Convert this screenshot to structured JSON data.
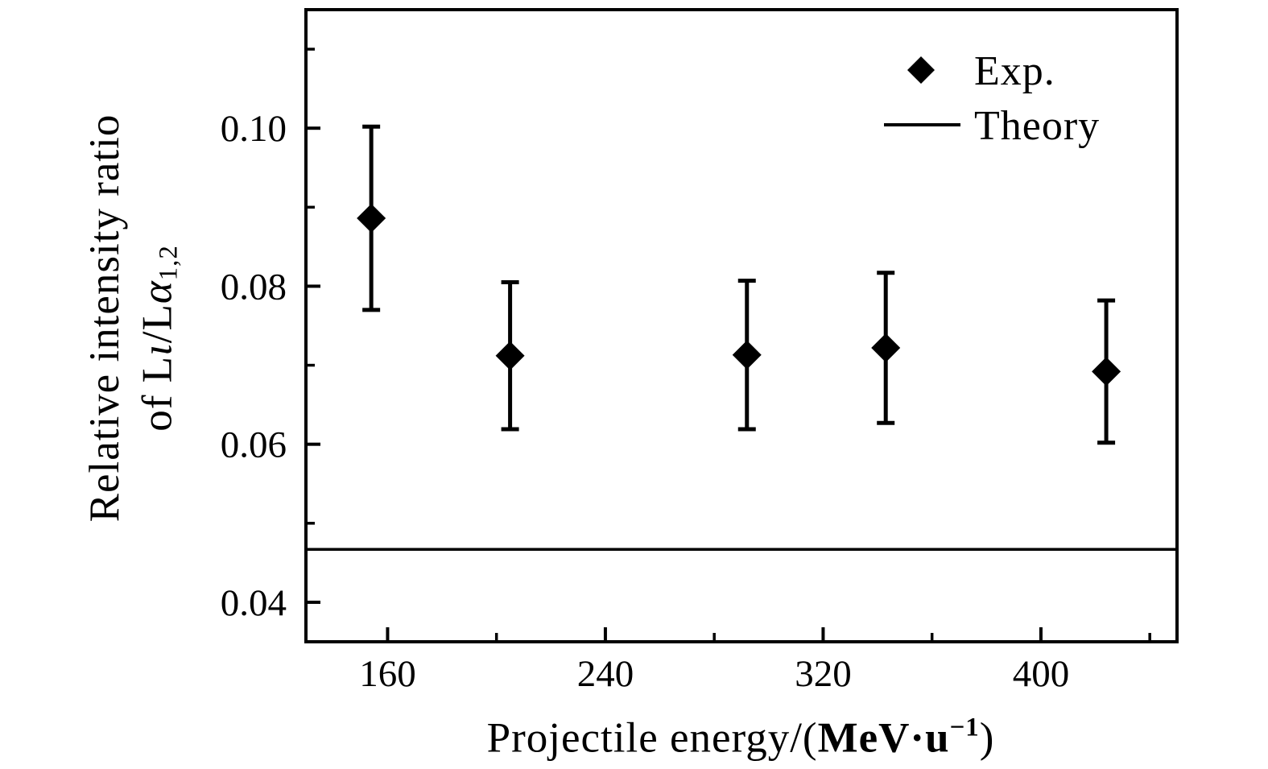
{
  "colors": {
    "background": "#ffffff",
    "foreground": "#000000"
  },
  "chart_data": {
    "type": "scatter",
    "title": "",
    "xlabel_text": "Projectile energy/(MeV·u⁻¹)",
    "xlabel_parts": [
      {
        "t": "Projectile energy/("
      },
      {
        "t": "MeV·u",
        "bold": true
      },
      {
        "t": "−1",
        "sup": true,
        "bold": true
      },
      {
        "t": ")"
      }
    ],
    "ylabel_line1": "Relative intensity ratio",
    "ylabel_line2_text": "of Lι/Lα₁,₂",
    "ylabel_line2_parts": [
      {
        "t": "of L"
      },
      {
        "t": "ι",
        "italic": true
      },
      {
        "t": "/L"
      },
      {
        "t": "α",
        "italic": true
      },
      {
        "t": "1,2",
        "sub": true
      }
    ],
    "xlim": [
      130,
      450
    ],
    "ylim": [
      0.035,
      0.115
    ],
    "x_major_ticks": [
      160,
      240,
      320,
      400
    ],
    "x_tick_labels": [
      "160",
      "240",
      "320",
      "400"
    ],
    "x_minor_ticks": [
      200,
      280,
      360,
      440
    ],
    "y_major_ticks": [
      0.04,
      0.06,
      0.08,
      0.1
    ],
    "y_tick_labels": [
      "0.04",
      "0.06",
      "0.08",
      "0.10"
    ],
    "y_minor_ticks": [
      0.05,
      0.07,
      0.09,
      0.11
    ],
    "grid": false,
    "legend": {
      "position": "top-right"
    },
    "series": [
      {
        "name": "Exp.",
        "type": "scatter",
        "marker": "diamond",
        "color": "#000000",
        "points": [
          {
            "x": 154,
            "y": 0.0886,
            "err": 0.0116
          },
          {
            "x": 205,
            "y": 0.0712,
            "err": 0.0093
          },
          {
            "x": 292,
            "y": 0.0713,
            "err": 0.0094
          },
          {
            "x": 343,
            "y": 0.0722,
            "err": 0.0095
          },
          {
            "x": 424,
            "y": 0.0692,
            "err": 0.009
          }
        ]
      },
      {
        "name": "Theory",
        "type": "hline",
        "y": 0.0467,
        "color": "#000000"
      }
    ]
  }
}
